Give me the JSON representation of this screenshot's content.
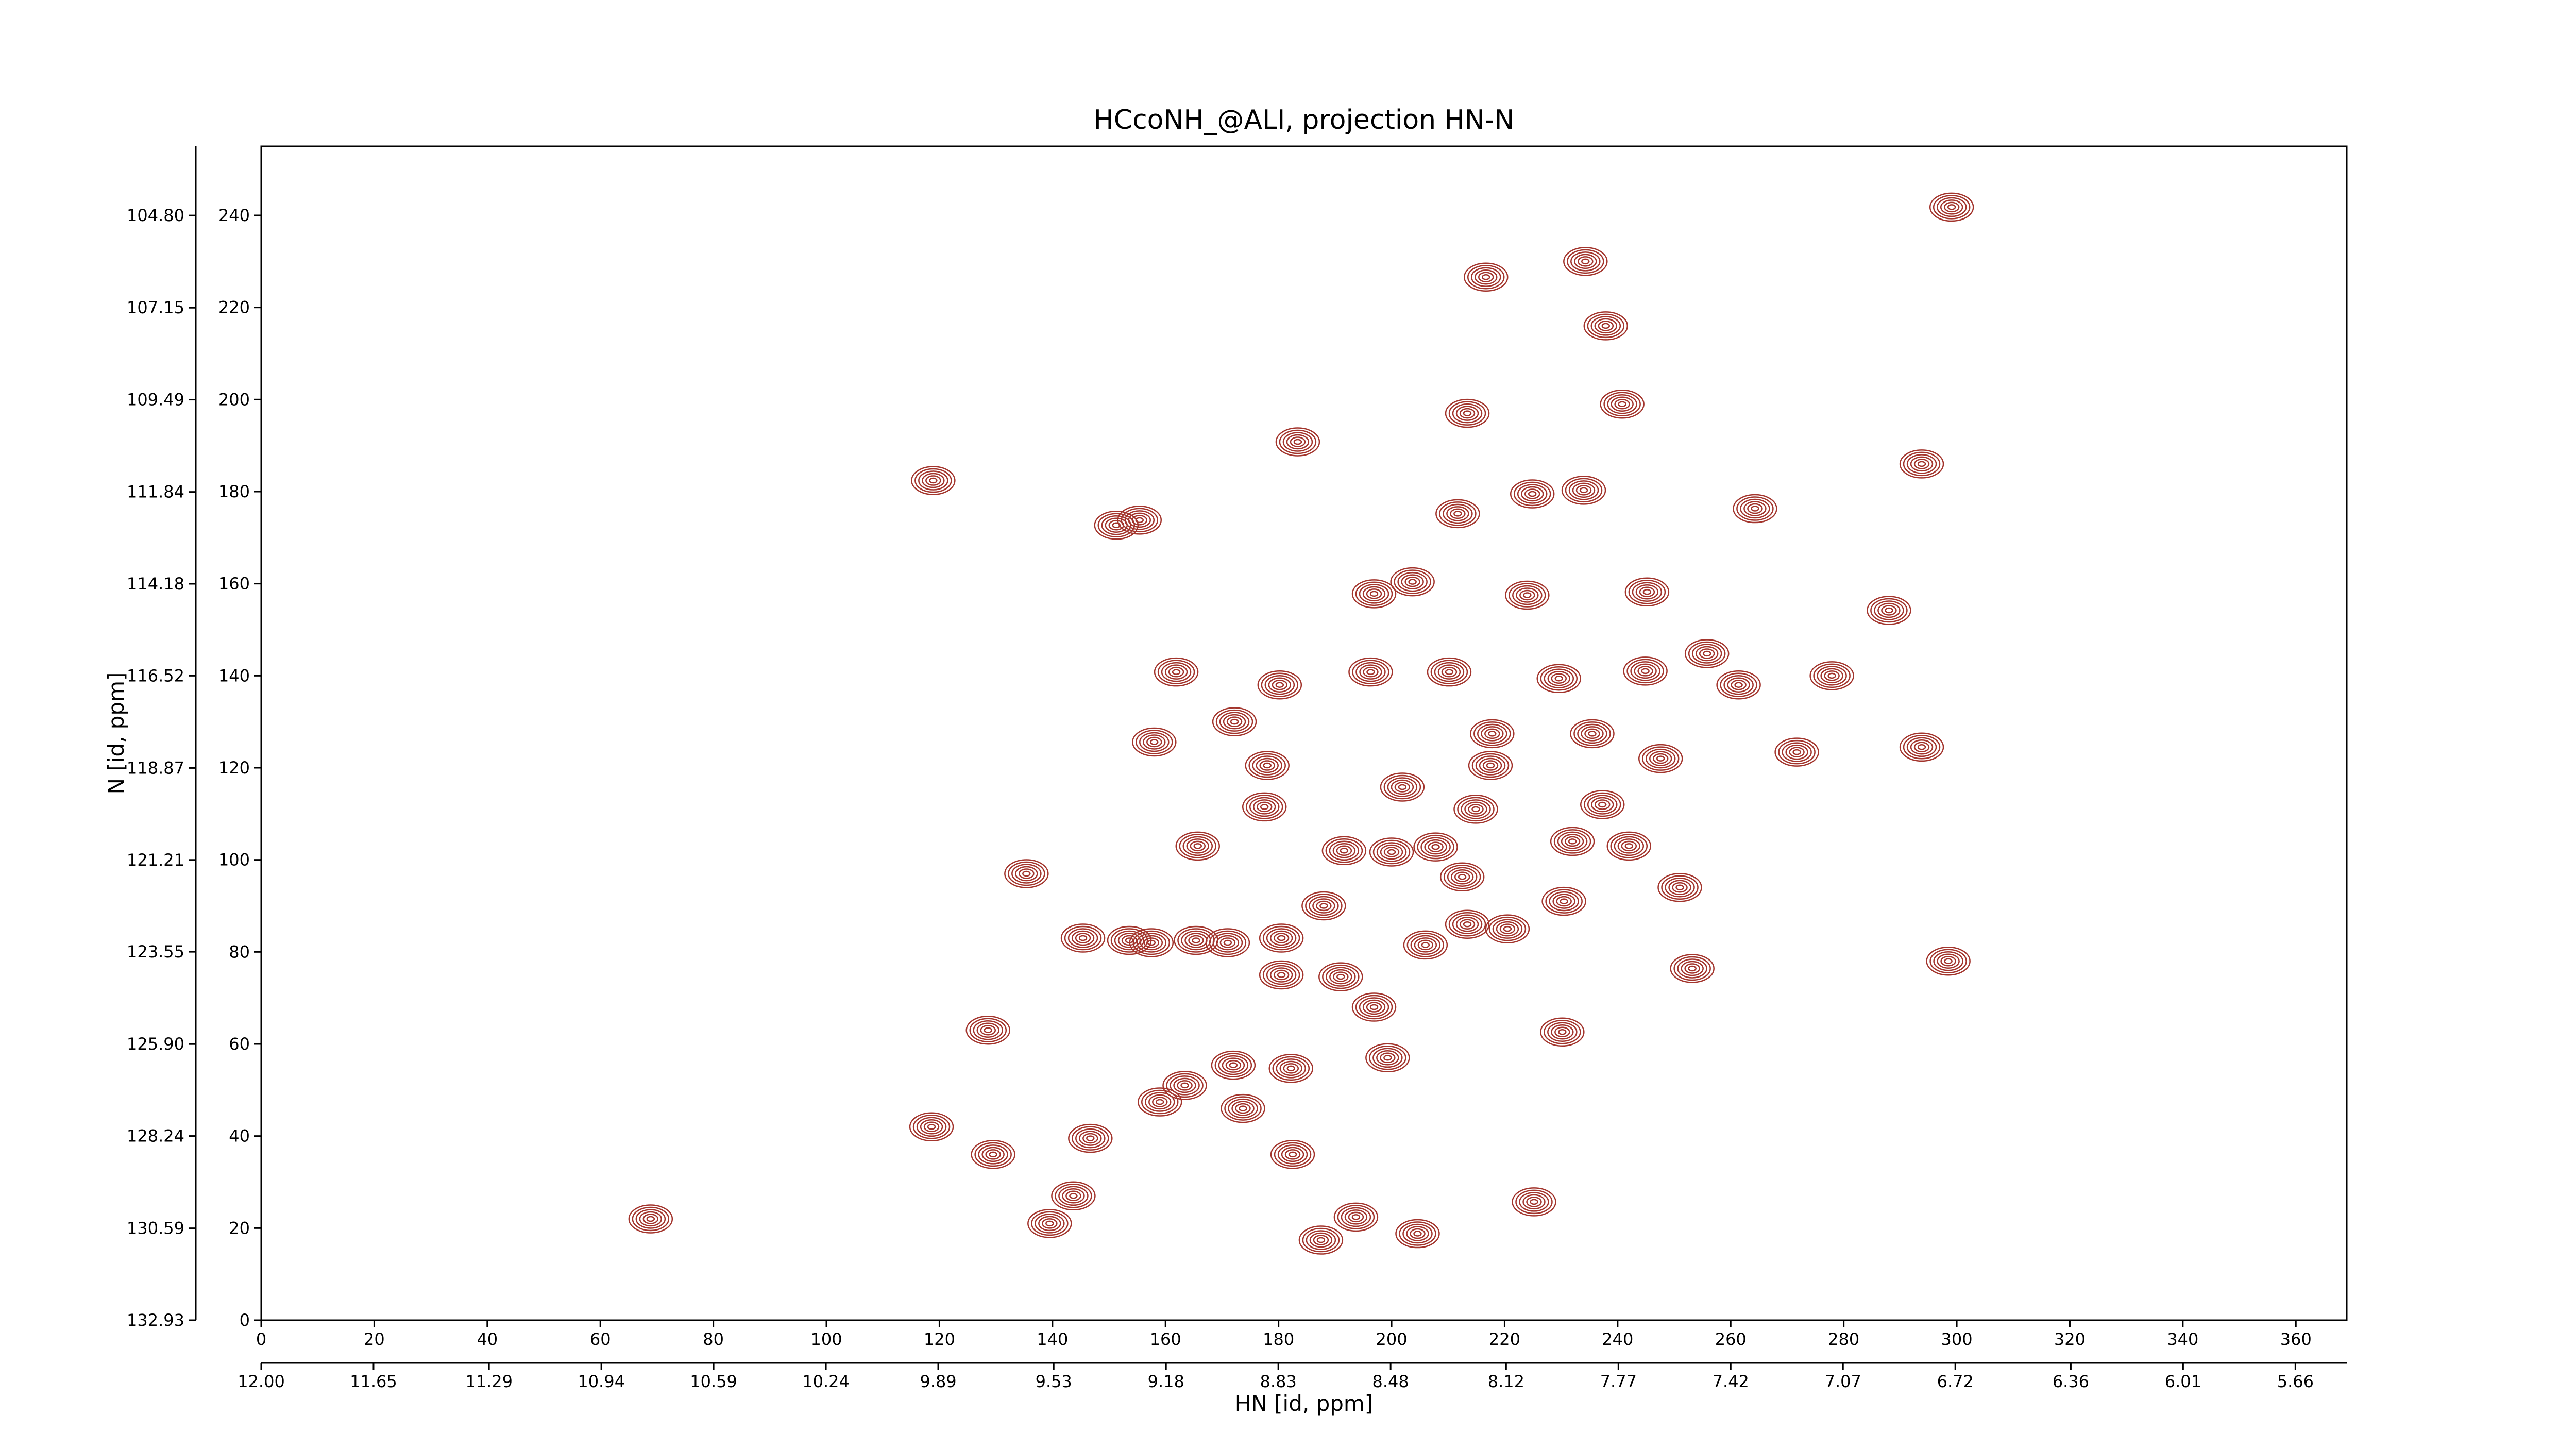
{
  "chart_data": {
    "type": "contour",
    "title": "HCcoNH_@ALI, projection HN-N",
    "xlabel": "HN [id, ppm]",
    "ylabel": "N [id, ppm]",
    "xlim": [
      0,
      369
    ],
    "ylim": [
      0,
      255
    ],
    "xticks": [
      0,
      20,
      40,
      60,
      80,
      100,
      120,
      140,
      160,
      180,
      200,
      220,
      240,
      260,
      280,
      300,
      320,
      340,
      360
    ],
    "yticks": [
      0,
      20,
      40,
      60,
      80,
      100,
      120,
      140,
      160,
      180,
      200,
      220,
      240
    ],
    "x2lim": [
      12.0,
      5.5
    ],
    "x2ticks": [
      {
        "value": 12,
        "label": "12.00"
      },
      11.65,
      11.29,
      10.94,
      10.59,
      10.24,
      9.89,
      9.53,
      9.18,
      8.83,
      8.48,
      8.12,
      7.77,
      7.42,
      7.07,
      6.72,
      6.36,
      6.01,
      5.66
    ],
    "y2lim": [
      132.93,
      103.04
    ],
    "y2ticks": [
      132.93,
      130.59,
      128.24,
      {
        "value": 125.9,
        "label": "125.90"
      },
      123.55,
      121.21,
      118.87,
      116.52,
      114.18,
      111.84,
      109.49,
      107.15,
      {
        "value": 104.8,
        "label": "104.80"
      }
    ],
    "color": "#a3352d",
    "peaks": {
      "x": [
        68.9,
        118.6,
        129.5,
        128.6,
        135.4,
        145.4,
        153.6,
        157.5,
        165.4,
        171,
        180.5,
        180.5,
        191,
        196.9,
        199.3,
        182.2,
        172,
        163.4,
        159,
        182.5,
        173.7,
        146.7,
        139.5,
        143.7,
        187.5,
        193.7,
        204.6,
        225.2,
        165.7,
        177.5,
        178,
        158,
        161.9,
        172.2,
        180.2,
        191.6,
        188,
        200,
        201.9,
        207.8,
        212.5,
        206,
        213.4,
        220.5,
        214.9,
        217.8,
        217.5,
        230.5,
        232,
        237.3,
        242,
        251,
        230.2,
        235.5,
        229.6,
        224,
        224.9,
        234,
        245.2,
        244.9,
        255.8,
        261.4,
        247.6,
        271.7,
        277.9,
        288,
        293.8,
        298.5,
        264.3,
        253.2,
        211.7,
        213.4,
        240.8,
        237.9,
        216.7,
        183.4,
        155.4,
        151.3,
        118.9,
        299.1,
        196.9,
        203.7,
        196.3,
        210.2,
        293.8,
        234.3
      ],
      "y": [
        22,
        42,
        36,
        63,
        97,
        83,
        82.5,
        82,
        82.5,
        82,
        83,
        75,
        74.6,
        68,
        57,
        54.7,
        55.4,
        51,
        47.4,
        36,
        46,
        39.5,
        21,
        27,
        17.4,
        22.4,
        18.8,
        25.7,
        103,
        111.5,
        120.5,
        125.6,
        140.8,
        130,
        138,
        102,
        90,
        101.7,
        115.8,
        102.8,
        96.3,
        81.5,
        86,
        85,
        111,
        127.4,
        120.5,
        91,
        104,
        112,
        103,
        94,
        62.6,
        127.4,
        139.4,
        157.5,
        179.5,
        180.3,
        158.2,
        141,
        144.8,
        138,
        122,
        123.4,
        140,
        154.2,
        124.5,
        78,
        176.3,
        76.4,
        175.2,
        197,
        199,
        216,
        226.6,
        190.8,
        173.8,
        172.7,
        182.4,
        241.8,
        157.8,
        160.4,
        140.8,
        140.8,
        186,
        230
      ]
    }
  }
}
